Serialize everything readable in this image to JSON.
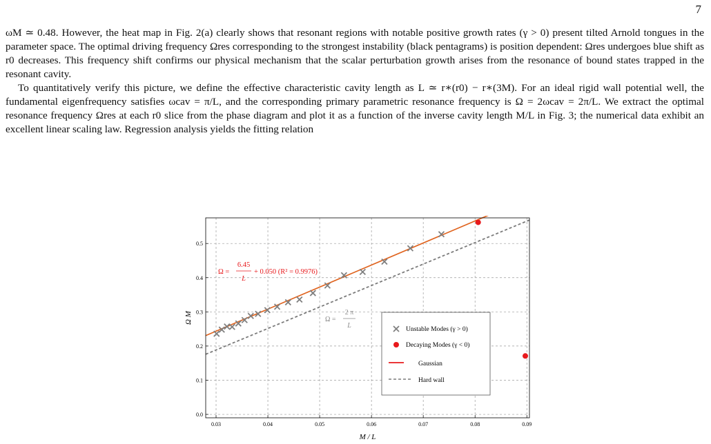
{
  "page_number": "7",
  "paragraphs": [
    "ωM ≃ 0.48. However, the heat map in Fig. 2(a) clearly shows that resonant regions with notable positive growth rates (γ > 0) present tilted Arnold tongues in the parameter space. The optimal driving frequency Ωres corresponding to the strongest instability (black pentagrams) is position dependent: Ωres undergoes blue shift as r0 decreases. This frequency shift confirms our physical mechanism that the scalar perturbation growth arises from the resonance of bound states trapped in the resonant cavity.",
    "To quantitatively verify this picture, we define the effective characteristic cavity length as L ≃ r∗(r0) − r∗(3M). For an ideal rigid wall potential well, the fundamental eigenfrequency satisfies ωcav = π/L, and the corresponding primary parametric resonance frequency is Ω = 2ωcav = 2π/L. We extract the optimal resonance frequency Ωres at each r0 slice from the phase diagram and plot it as a function of the inverse cavity length M/L in Fig. 3; the numerical data exhibit an excellent linear scaling law. Regression analysis yields the fitting relation"
  ],
  "chart_data": {
    "type": "scatter",
    "xlabel": "M / L",
    "ylabel": "Ω M",
    "xlim": [
      0.028,
      0.0905
    ],
    "ylim": [
      -0.01,
      0.575
    ],
    "x_ticks": [
      0.03,
      0.04,
      0.05,
      0.06,
      0.07,
      0.08,
      0.09
    ],
    "y_ticks": [
      0.0,
      0.1,
      0.2,
      0.3,
      0.4,
      0.5
    ],
    "x_tick_labels": [
      "0.03",
      "0.04",
      "0.05",
      "0.06",
      "0.07",
      "0.08",
      "0.09"
    ],
    "y_tick_labels": [
      "0.0",
      "0.1",
      "0.2",
      "0.3",
      "0.4",
      "0.5"
    ],
    "grid": true,
    "legend_position": "right",
    "series": [
      {
        "name": "Unstable Modes (γ > 0)",
        "marker": "x",
        "color": "#7f7f7f",
        "x": [
          0.0301,
          0.0311,
          0.0321,
          0.0331,
          0.0343,
          0.0355,
          0.0367,
          0.0381,
          0.0399,
          0.0418,
          0.0439,
          0.0461,
          0.0487,
          0.0515,
          0.0547,
          0.0583,
          0.0625,
          0.0675,
          0.0735
        ],
        "y": [
          0.236,
          0.248,
          0.257,
          0.256,
          0.266,
          0.276,
          0.288,
          0.294,
          0.305,
          0.315,
          0.328,
          0.336,
          0.355,
          0.377,
          0.407,
          0.417,
          0.447,
          0.486,
          0.527
        ]
      },
      {
        "name": "Decaying Modes (γ < 0)",
        "marker": "circle",
        "color": "#e8191c",
        "x": [
          0.0806,
          0.0897
        ],
        "y": [
          0.562,
          0.171
        ]
      },
      {
        "name": "Gaussian",
        "type": "line",
        "color": "#e0641f",
        "slope": 6.45,
        "intercept": 0.05
      },
      {
        "name": "Hard wall",
        "type": "line",
        "style": "dashed",
        "color": "#7a7a7a",
        "slope": 6.2832,
        "intercept": 0.0
      }
    ],
    "annotations": {
      "fit_prefix": "Ω =",
      "fit_num": "6.45",
      "fit_den": "L",
      "fit_suffix": "+ 0.050 (R² = 0.9976)",
      "fit_color": "#e8191c",
      "hard_prefix": "Ω =",
      "hard_num": "2 π",
      "hard_den": "L",
      "hard_color": "#8a8a8a"
    }
  }
}
